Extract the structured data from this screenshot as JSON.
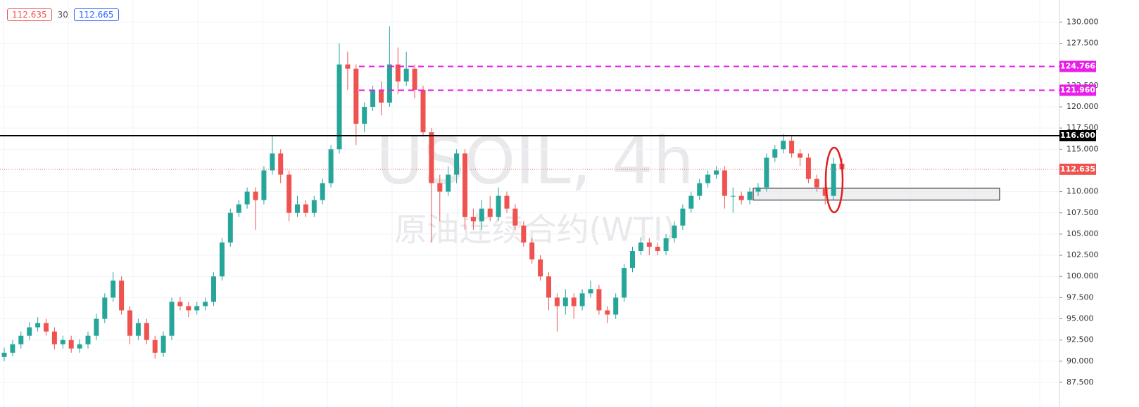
{
  "header": {
    "bid": "112.635",
    "spread": "30",
    "ask": "112.665"
  },
  "chart_data": {
    "type": "candlestick",
    "watermark": "USOIL, 4h",
    "watermark_subtitle": "原油连续合约(WTI)",
    "up_color": "#26a69a",
    "down_color": "#ef5350",
    "grid": true,
    "ylim": [
      84.6,
      132.6
    ],
    "yticks": [
      {
        "value": 87.5,
        "label": "87.500"
      },
      {
        "value": 90,
        "label": "90.000"
      },
      {
        "value": 92.5,
        "label": "92.500"
      },
      {
        "value": 95,
        "label": "95.000"
      },
      {
        "value": 97.5,
        "label": "97.500"
      },
      {
        "value": 100,
        "label": "100.000"
      },
      {
        "value": 102.5,
        "label": "102.500"
      },
      {
        "value": 105,
        "label": "105.000"
      },
      {
        "value": 107.5,
        "label": "107.500"
      },
      {
        "value": 110,
        "label": "110.000"
      },
      {
        "value": 115,
        "label": "115.000"
      },
      {
        "value": 117.5,
        "label": "117.500"
      },
      {
        "value": 120,
        "label": "120.000"
      },
      {
        "value": 122.5,
        "label": "122.500"
      },
      {
        "value": 127.5,
        "label": "127.500"
      },
      {
        "value": 130,
        "label": "130.000"
      }
    ],
    "levels": [
      {
        "value": 124.766,
        "label": "124.766",
        "color": "#e91ee9",
        "style": "dashed"
      },
      {
        "value": 121.96,
        "label": "121.960",
        "color": "#e91ee9",
        "style": "dashed"
      },
      {
        "value": 116.6,
        "label": "116.600",
        "color": "#000000",
        "style": "solid"
      },
      {
        "value": 112.635,
        "label": "112.635",
        "color": "#ef5350",
        "style": "dotted"
      }
    ],
    "zone": {
      "low": 109,
      "high": 110.4
    },
    "candles": [
      [
        90.5,
        91.6,
        90,
        91
      ],
      [
        91,
        92.5,
        90.6,
        92
      ],
      [
        92,
        93.5,
        91.5,
        93
      ],
      [
        93,
        94.6,
        92.5,
        94
      ],
      [
        94,
        95.2,
        93.5,
        94.5
      ],
      [
        94.5,
        95,
        93,
        93.5
      ],
      [
        93.5,
        94,
        91.4,
        92
      ],
      [
        92,
        93,
        91.5,
        92.5
      ],
      [
        92.5,
        93,
        91,
        91.5
      ],
      [
        91.5,
        92.6,
        91,
        92
      ],
      [
        92,
        93.5,
        91.5,
        93
      ],
      [
        93,
        95.6,
        92.5,
        95
      ],
      [
        95,
        98,
        94.5,
        97.5
      ],
      [
        97.5,
        100.5,
        97,
        99.5
      ],
      [
        99.5,
        100,
        95.5,
        96
      ],
      [
        96,
        96.5,
        92,
        93
      ],
      [
        93,
        95,
        92.5,
        94.5
      ],
      [
        94.5,
        95,
        92,
        92.5
      ],
      [
        92.5,
        93,
        90.3,
        91
      ],
      [
        91,
        93.5,
        90.5,
        93
      ],
      [
        93,
        97.5,
        92.5,
        97
      ],
      [
        97,
        97.6,
        96,
        96.5
      ],
      [
        96.5,
        97,
        95.2,
        96
      ],
      [
        96,
        97,
        95.5,
        96.5
      ],
      [
        96.5,
        97.5,
        96,
        97
      ],
      [
        97,
        100.5,
        96.5,
        100
      ],
      [
        100,
        104.5,
        99.5,
        104
      ],
      [
        104,
        108,
        103.5,
        107.5
      ],
      [
        107.5,
        109,
        107,
        108.5
      ],
      [
        108.5,
        110.5,
        108,
        110
      ],
      [
        110,
        110.5,
        105.5,
        109
      ],
      [
        109,
        113,
        108.5,
        112.5
      ],
      [
        112.5,
        116.5,
        112,
        114.5
      ],
      [
        114.5,
        115,
        111,
        112
      ],
      [
        112,
        112.5,
        106.5,
        107.5
      ],
      [
        107.5,
        109.5,
        107,
        108.5
      ],
      [
        108.5,
        109,
        107,
        107.5
      ],
      [
        107.5,
        109.5,
        107,
        109
      ],
      [
        109,
        111.5,
        108.5,
        111
      ],
      [
        111,
        115.5,
        110.5,
        115
      ],
      [
        115,
        127.5,
        114.5,
        125
      ],
      [
        125,
        126.5,
        122,
        124.5
      ],
      [
        124.5,
        125,
        115.5,
        118
      ],
      [
        118,
        120.5,
        117,
        120
      ],
      [
        120,
        122.5,
        119.5,
        122
      ],
      [
        122,
        123,
        119,
        120.5
      ],
      [
        120.5,
        129.5,
        120,
        125
      ],
      [
        125,
        127,
        121.5,
        123
      ],
      [
        123,
        126.5,
        122.5,
        124.5
      ],
      [
        124.5,
        125,
        121,
        122
      ],
      [
        122,
        122.5,
        116.5,
        117
      ],
      [
        117,
        117.5,
        104,
        111
      ],
      [
        111,
        112,
        106.5,
        110
      ],
      [
        110,
        113,
        109.5,
        112
      ],
      [
        112,
        115,
        111,
        114.5
      ],
      [
        114.5,
        115,
        105.5,
        107
      ],
      [
        107,
        108,
        105.5,
        106.5
      ],
      [
        106.5,
        109,
        105.5,
        108
      ],
      [
        108,
        109.5,
        106.5,
        107
      ],
      [
        107,
        110.5,
        106.5,
        109.5
      ],
      [
        109.5,
        110,
        107.5,
        108
      ],
      [
        108,
        108.5,
        105.5,
        106
      ],
      [
        106,
        106.5,
        103.5,
        104
      ],
      [
        104,
        104.5,
        101.5,
        102
      ],
      [
        102,
        102.5,
        99.5,
        100
      ],
      [
        100,
        100.5,
        96,
        97.5
      ],
      [
        97.5,
        98,
        93.5,
        96.5
      ],
      [
        96.5,
        98.5,
        95.5,
        97.5
      ],
      [
        97.5,
        98,
        95,
        96.5
      ],
      [
        96.5,
        98.5,
        96,
        98
      ],
      [
        98,
        99.5,
        97.5,
        98.5
      ],
      [
        98.5,
        99,
        95.5,
        96
      ],
      [
        96,
        96.5,
        94.5,
        95.5
      ],
      [
        95.5,
        98,
        95,
        97.5
      ],
      [
        97.5,
        101.5,
        97,
        101
      ],
      [
        101,
        103.5,
        100.5,
        103
      ],
      [
        103,
        104.6,
        102.5,
        104
      ],
      [
        104,
        104.5,
        102.5,
        103.5
      ],
      [
        103.5,
        104,
        102.5,
        103
      ],
      [
        103,
        105,
        102.5,
        104.5
      ],
      [
        104.5,
        106.5,
        104,
        106
      ],
      [
        106,
        108.5,
        105.5,
        108
      ],
      [
        108,
        110,
        107.5,
        109.5
      ],
      [
        109.5,
        111.5,
        109,
        111
      ],
      [
        111,
        112.5,
        110.5,
        112
      ],
      [
        112,
        113,
        111.5,
        112.5
      ],
      [
        112.5,
        113,
        108,
        109.5
      ],
      [
        109.5,
        110.5,
        107.5,
        109.5
      ],
      [
        109.5,
        110,
        108.5,
        109
      ],
      [
        109,
        110.5,
        108.5,
        110
      ],
      [
        110,
        111,
        109.5,
        110.5
      ],
      [
        110.5,
        114.5,
        110,
        114
      ],
      [
        114,
        115.5,
        113.5,
        115
      ],
      [
        115,
        116.8,
        114.5,
        116
      ],
      [
        116,
        116.5,
        114,
        114.5
      ],
      [
        114.5,
        115,
        113,
        114
      ],
      [
        114,
        114.5,
        111,
        111.5
      ],
      [
        111.5,
        112,
        110,
        110.5
      ],
      [
        110.5,
        111,
        108.5,
        109.5
      ],
      [
        109.5,
        114,
        109,
        113.3
      ],
      [
        113.3,
        114,
        112.2,
        112.635
      ]
    ]
  }
}
